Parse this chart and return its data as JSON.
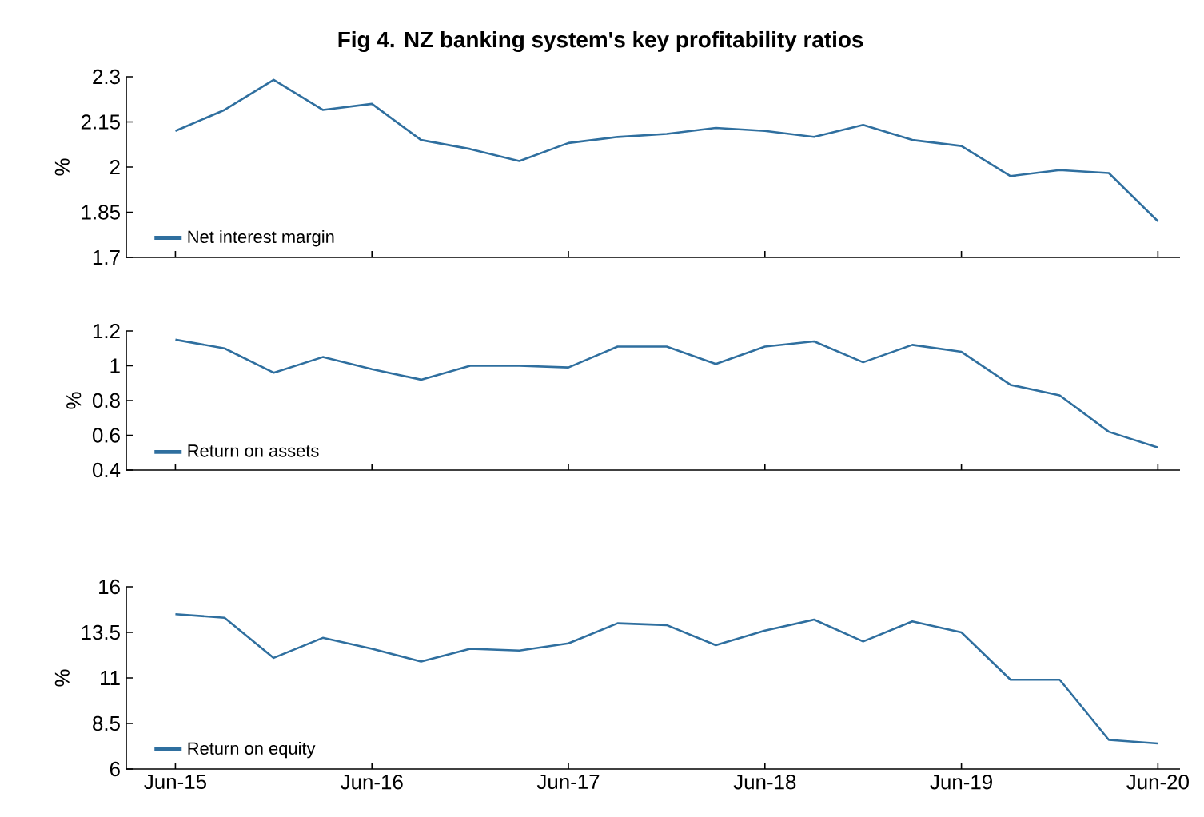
{
  "chart_data": [
    {
      "type": "line",
      "title": "Fig 4. NZ banking system's key profitability ratios",
      "ylabel": "%",
      "categories": [
        null,
        null,
        null,
        null,
        null,
        null,
        null,
        null,
        null,
        null,
        null,
        null,
        null,
        null,
        null,
        null,
        null,
        null,
        null,
        null,
        null
      ],
      "ylim": [
        1.7,
        2.3
      ],
      "yticks": [
        1.7,
        1.85,
        2,
        2.15,
        2.3
      ],
      "legend": "bottom left",
      "tick_labels": "y",
      "series": [
        {
          "name": "Net interest margin",
          "color": "#2f6f9f",
          "values": [
            2.12,
            2.19,
            2.29,
            2.19,
            2.21,
            2.09,
            2.06,
            2.02,
            2.08,
            2.1,
            2.11,
            2.13,
            2.12,
            2.1,
            2.14,
            2.09,
            2.07,
            1.97,
            1.99,
            1.98,
            1.82
          ]
        }
      ]
    },
    {
      "type": "line",
      "ylabel": "%",
      "categories": [
        null,
        null,
        null,
        null,
        null,
        null,
        null,
        null,
        null,
        null,
        null,
        null,
        null,
        null,
        null,
        null,
        null,
        null,
        null,
        null,
        null
      ],
      "ylim": [
        0.4,
        1.2
      ],
      "yticks": [
        0.4,
        0.6,
        0.8,
        1,
        1.2
      ],
      "legend": "bottom left",
      "tick_labels": "y",
      "series": [
        {
          "name": "Return on assets",
          "color": "#2f6f9f",
          "values": [
            1.15,
            1.1,
            0.96,
            1.05,
            0.98,
            0.92,
            1.0,
            1.0,
            0.99,
            1.11,
            1.11,
            1.01,
            1.11,
            1.14,
            1.02,
            1.12,
            1.08,
            0.89,
            0.83,
            0.62,
            0.53
          ]
        }
      ]
    },
    {
      "type": "line",
      "ylabel": "%",
      "categories": [
        "Jun-15",
        null,
        null,
        null,
        "Jun-16",
        null,
        null,
        null,
        "Jun-17",
        null,
        null,
        null,
        "Jun-18",
        null,
        null,
        null,
        "Jun-19",
        null,
        null,
        null,
        "Jun-20"
      ],
      "ylim": [
        6,
        16
      ],
      "yticks": [
        6,
        8.5,
        11,
        13.5,
        16
      ],
      "legend": "bottom left",
      "series": [
        {
          "name": "Return on equity",
          "color": "#2f6f9f",
          "values": [
            14.5,
            14.3,
            12.1,
            13.2,
            12.6,
            11.9,
            12.6,
            12.5,
            12.9,
            14.0,
            13.9,
            12.8,
            13.6,
            14.2,
            13.0,
            14.1,
            13.5,
            10.9,
            10.9,
            7.6,
            7.4
          ]
        }
      ]
    }
  ]
}
